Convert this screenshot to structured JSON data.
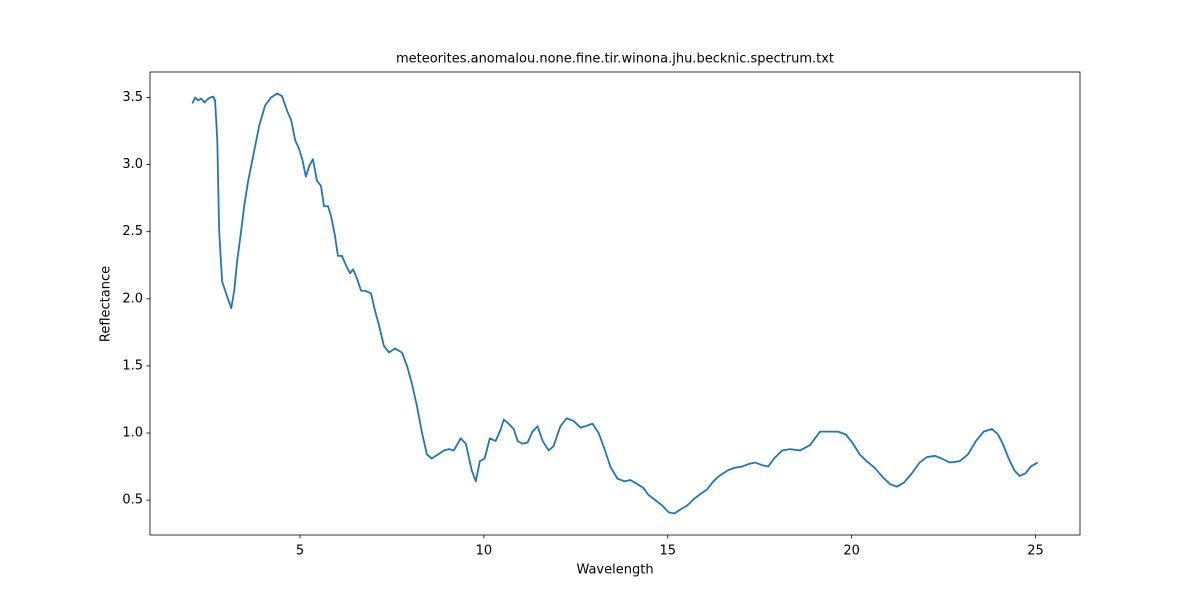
{
  "chart_data": {
    "type": "line",
    "title": "meteorites.anomalou.none.fine.tir.winona.jhu.becknic.spectrum.txt",
    "x_label": "Wavelength",
    "y_label": "Reflectance",
    "xlim": [
      0.92,
      26.21
    ],
    "ylim": [
      0.24,
      3.69
    ],
    "xticks": [
      5,
      10,
      15,
      20,
      25
    ],
    "yticks": [
      0.5,
      {
        "value": 1.0,
        "label": "1.0"
      },
      1.5,
      {
        "value": 2.0,
        "label": "2.0"
      },
      2.5,
      {
        "value": 3.0,
        "label": "3.0"
      },
      3.5
    ],
    "grid": false,
    "series": [
      {
        "color": "#1f77b4",
        "x": [
          2.07,
          2.15,
          2.23,
          2.31,
          2.4,
          2.48,
          2.56,
          2.64,
          2.69,
          2.75,
          2.8,
          2.88,
          2.99,
          3.13,
          3.21,
          3.29,
          3.4,
          3.48,
          3.59,
          3.73,
          3.89,
          4.05,
          4.21,
          4.38,
          4.51,
          4.65,
          4.76,
          4.87,
          4.97,
          5.06,
          5.16,
          5.25,
          5.35,
          5.46,
          5.57,
          5.65,
          5.76,
          5.84,
          5.95,
          6.03,
          6.14,
          6.25,
          6.36,
          6.44,
          6.55,
          6.66,
          6.77,
          6.93,
          7.04,
          7.15,
          7.28,
          7.42,
          7.58,
          7.77,
          7.91,
          8.04,
          8.18,
          8.31,
          8.45,
          8.58,
          8.75,
          8.91,
          9.05,
          9.18,
          9.37,
          9.51,
          9.67,
          9.78,
          9.89,
          10.02,
          10.16,
          10.32,
          10.46,
          10.54,
          10.67,
          10.81,
          10.92,
          11.05,
          11.19,
          11.32,
          11.46,
          11.6,
          11.76,
          11.89,
          12.08,
          12.25,
          12.44,
          12.63,
          12.76,
          12.95,
          13.12,
          13.28,
          13.44,
          13.63,
          13.82,
          13.98,
          14.17,
          14.34,
          14.47,
          14.66,
          14.85,
          15.02,
          15.18,
          15.34,
          15.53,
          15.72,
          15.91,
          16.07,
          16.24,
          16.4,
          16.62,
          16.81,
          17.02,
          17.21,
          17.38,
          17.57,
          17.73,
          17.89,
          18.11,
          18.32,
          18.6,
          18.87,
          19.14,
          19.36,
          19.63,
          19.84,
          20.04,
          20.22,
          20.41,
          20.63,
          20.85,
          21.04,
          21.23,
          21.42,
          21.64,
          21.85,
          22.04,
          22.26,
          22.45,
          22.67,
          22.94,
          23.16,
          23.38,
          23.59,
          23.81,
          23.98,
          24.11,
          24.27,
          24.43,
          24.57,
          24.73,
          24.87,
          25.06
        ],
        "values": [
          3.455,
          3.5,
          3.478,
          3.493,
          3.463,
          3.485,
          3.5,
          3.507,
          3.478,
          3.18,
          2.51,
          2.13,
          2.04,
          1.93,
          2.06,
          2.28,
          2.51,
          2.69,
          2.88,
          3.07,
          3.29,
          3.44,
          3.5,
          3.53,
          3.51,
          3.4,
          3.33,
          3.18,
          3.12,
          3.04,
          2.91,
          2.99,
          3.04,
          2.88,
          2.84,
          2.69,
          2.69,
          2.62,
          2.47,
          2.32,
          2.32,
          2.25,
          2.19,
          2.22,
          2.15,
          2.06,
          2.06,
          2.04,
          1.91,
          1.8,
          1.65,
          1.6,
          1.63,
          1.6,
          1.5,
          1.37,
          1.2,
          1.01,
          0.84,
          0.81,
          0.84,
          0.87,
          0.88,
          0.87,
          0.96,
          0.92,
          0.72,
          0.64,
          0.79,
          0.81,
          0.96,
          0.94,
          1.03,
          1.1,
          1.07,
          1.03,
          0.94,
          0.92,
          0.93,
          1.01,
          1.05,
          0.94,
          0.87,
          0.9,
          1.05,
          1.11,
          1.09,
          1.04,
          1.05,
          1.07,
          1.0,
          0.88,
          0.75,
          0.66,
          0.64,
          0.65,
          0.62,
          0.59,
          0.54,
          0.5,
          0.46,
          0.41,
          0.4,
          0.43,
          0.46,
          0.51,
          0.55,
          0.58,
          0.64,
          0.68,
          0.72,
          0.74,
          0.75,
          0.77,
          0.78,
          0.76,
          0.75,
          0.81,
          0.87,
          0.88,
          0.87,
          0.91,
          1.01,
          1.01,
          1.01,
          0.99,
          0.92,
          0.84,
          0.79,
          0.74,
          0.67,
          0.62,
          0.6,
          0.63,
          0.7,
          0.78,
          0.82,
          0.83,
          0.81,
          0.78,
          0.79,
          0.84,
          0.94,
          1.01,
          1.03,
          0.99,
          0.92,
          0.81,
          0.72,
          0.68,
          0.7,
          0.75,
          0.78
        ]
      }
    ]
  }
}
